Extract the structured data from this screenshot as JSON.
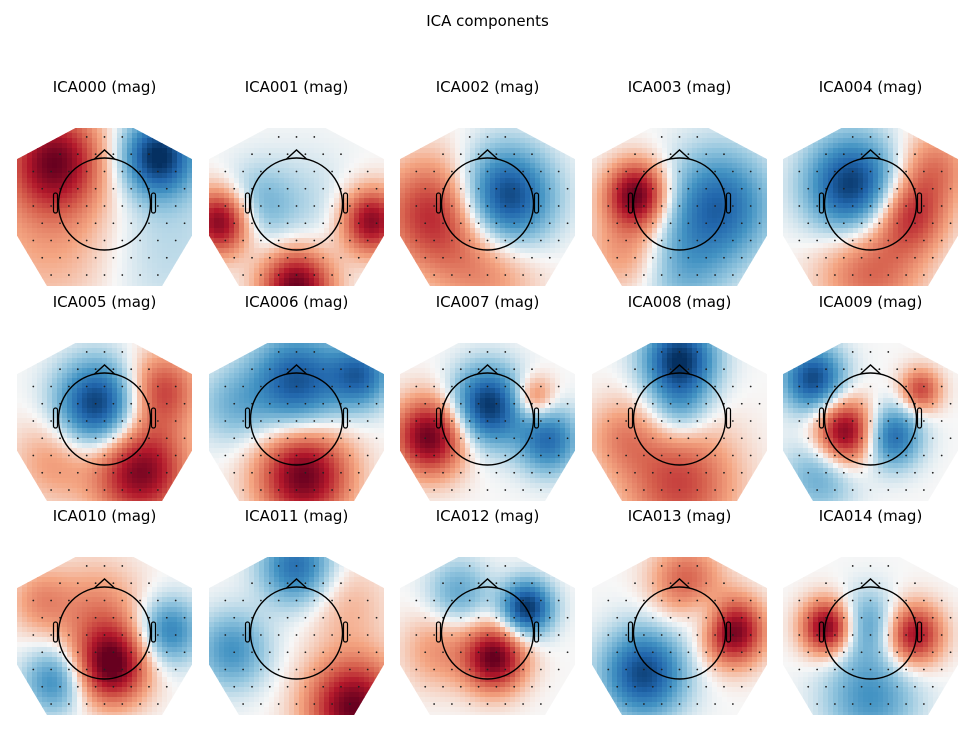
{
  "figure": {
    "title": "ICA components"
  },
  "chart_data": {
    "type": "heatmap",
    "title": "ICA components",
    "subtype": "topomap-grid",
    "colormap": {
      "name": "RdBu_r",
      "negative": "#053061",
      "zero": "#f7f7f7",
      "positive": "#67001f"
    },
    "panels": [
      {
        "label": "ICA000 (mag)",
        "blobs": [
          {
            "x": -0.7,
            "y": 0.6,
            "amp": 0.85,
            "s": 0.45
          },
          {
            "x": 0.75,
            "y": 0.65,
            "amp": -1.0,
            "s": 0.35
          },
          {
            "x": -0.5,
            "y": -0.3,
            "amp": 0.35,
            "s": 0.8
          },
          {
            "x": 0.5,
            "y": -0.4,
            "amp": -0.25,
            "s": 0.8
          }
        ]
      },
      {
        "label": "ICA001 (mag)",
        "blobs": [
          {
            "x": 0.0,
            "y": -1.05,
            "amp": 1.0,
            "s": 0.35
          },
          {
            "x": -1.05,
            "y": -0.2,
            "amp": 1.0,
            "s": 0.3
          },
          {
            "x": 1.05,
            "y": -0.2,
            "amp": 0.9,
            "s": 0.3
          },
          {
            "x": -0.6,
            "y": 0.0,
            "amp": -0.35,
            "s": 0.35
          },
          {
            "x": 0.1,
            "y": 0.0,
            "amp": -0.15,
            "s": 0.5
          }
        ]
      },
      {
        "label": "ICA002 (mag)",
        "blobs": [
          {
            "x": 0.25,
            "y": 0.1,
            "amp": -1.0,
            "s": 0.45
          },
          {
            "x": -0.75,
            "y": -0.1,
            "amp": 0.7,
            "s": 0.5
          },
          {
            "x": 0.0,
            "y": -0.8,
            "amp": 0.35,
            "s": 0.5
          }
        ]
      },
      {
        "label": "ICA003 (mag)",
        "blobs": [
          {
            "x": -0.6,
            "y": 0.15,
            "amp": 1.0,
            "s": 0.3
          },
          {
            "x": 0.55,
            "y": 0.0,
            "amp": -0.75,
            "s": 0.5
          },
          {
            "x": 0.0,
            "y": -0.8,
            "amp": -0.35,
            "s": 0.45
          },
          {
            "x": -0.7,
            "y": -0.6,
            "amp": 0.35,
            "s": 0.4
          }
        ]
      },
      {
        "label": "ICA004 (mag)",
        "blobs": [
          {
            "x": -0.25,
            "y": 0.25,
            "amp": -1.0,
            "s": 0.45
          },
          {
            "x": 0.55,
            "y": -0.1,
            "amp": 0.65,
            "s": 0.35
          },
          {
            "x": 0.0,
            "y": -0.8,
            "amp": 0.5,
            "s": 0.5
          },
          {
            "x": 0.9,
            "y": 0.5,
            "amp": 0.4,
            "s": 0.35
          }
        ]
      },
      {
        "label": "ICA005 (mag)",
        "blobs": [
          {
            "x": -0.1,
            "y": 0.2,
            "amp": -1.0,
            "s": 0.4
          },
          {
            "x": 0.5,
            "y": -0.65,
            "amp": 0.95,
            "s": 0.45
          },
          {
            "x": 0.8,
            "y": 0.4,
            "amp": 0.6,
            "s": 0.35
          },
          {
            "x": -0.7,
            "y": -0.5,
            "amp": 0.3,
            "s": 0.4
          }
        ]
      },
      {
        "label": "ICA006 (mag)",
        "blobs": [
          {
            "x": 0.0,
            "y": 0.5,
            "amp": -0.85,
            "s": 0.45
          },
          {
            "x": 0.9,
            "y": 0.6,
            "amp": -0.7,
            "s": 0.3
          },
          {
            "x": 0.1,
            "y": -0.7,
            "amp": 1.0,
            "s": 0.45
          },
          {
            "x": -0.9,
            "y": 0.2,
            "amp": -0.3,
            "s": 0.35
          }
        ]
      },
      {
        "label": "ICA007 (mag)",
        "blobs": [
          {
            "x": 0.0,
            "y": 0.2,
            "amp": -1.0,
            "s": 0.35
          },
          {
            "x": -0.8,
            "y": -0.2,
            "amp": 1.0,
            "s": 0.35
          },
          {
            "x": 0.65,
            "y": 0.3,
            "amp": 0.5,
            "s": 0.2
          },
          {
            "x": 0.85,
            "y": -0.25,
            "amp": -0.7,
            "s": 0.3
          }
        ]
      },
      {
        "label": "ICA008 (mag)",
        "blobs": [
          {
            "x": 0.0,
            "y": 0.8,
            "amp": -1.0,
            "s": 0.35
          },
          {
            "x": 0.0,
            "y": 0.15,
            "amp": -0.35,
            "s": 0.3
          },
          {
            "x": 0.0,
            "y": -0.8,
            "amp": 0.6,
            "s": 0.55
          },
          {
            "x": -0.8,
            "y": -0.2,
            "amp": 0.3,
            "s": 0.35
          }
        ]
      },
      {
        "label": "ICA009 (mag)",
        "blobs": [
          {
            "x": -0.35,
            "y": -0.15,
            "amp": 1.0,
            "s": 0.3
          },
          {
            "x": 0.3,
            "y": -0.2,
            "amp": -0.75,
            "s": 0.28
          },
          {
            "x": -0.8,
            "y": 0.55,
            "amp": -0.9,
            "s": 0.3
          },
          {
            "x": 0.7,
            "y": 0.4,
            "amp": 0.6,
            "s": 0.2
          },
          {
            "x": -0.7,
            "y": -0.7,
            "amp": -0.4,
            "s": 0.35
          }
        ]
      },
      {
        "label": "ICA010 (mag)",
        "blobs": [
          {
            "x": 0.1,
            "y": -0.4,
            "amp": 1.0,
            "s": 0.35
          },
          {
            "x": -0.1,
            "y": 0.3,
            "amp": 0.35,
            "s": 0.45
          },
          {
            "x": 0.9,
            "y": 0.05,
            "amp": -0.6,
            "s": 0.3
          },
          {
            "x": -0.7,
            "y": -0.6,
            "amp": -0.55,
            "s": 0.3
          },
          {
            "x": -0.9,
            "y": 0.45,
            "amp": 0.3,
            "s": 0.3
          }
        ]
      },
      {
        "label": "ICA011 (mag)",
        "blobs": [
          {
            "x": 0.8,
            "y": -0.95,
            "amp": 1.0,
            "s": 0.45
          },
          {
            "x": 0.0,
            "y": 0.9,
            "amp": -0.7,
            "s": 0.35
          },
          {
            "x": -0.9,
            "y": -0.2,
            "amp": -0.5,
            "s": 0.35
          },
          {
            "x": 0.7,
            "y": 0.4,
            "amp": 0.2,
            "s": 0.4
          }
        ]
      },
      {
        "label": "ICA012 (mag)",
        "blobs": [
          {
            "x": 0.1,
            "y": -0.3,
            "amp": 1.0,
            "s": 0.3
          },
          {
            "x": 0.55,
            "y": 0.35,
            "amp": -1.0,
            "s": 0.25
          },
          {
            "x": -0.4,
            "y": 0.55,
            "amp": -0.4,
            "s": 0.3
          },
          {
            "x": -0.7,
            "y": -0.2,
            "amp": 0.3,
            "s": 0.35
          }
        ]
      },
      {
        "label": "ICA013 (mag)",
        "blobs": [
          {
            "x": 0.75,
            "y": 0.05,
            "amp": 1.0,
            "s": 0.3
          },
          {
            "x": -0.5,
            "y": -0.5,
            "amp": -0.9,
            "s": 0.4
          },
          {
            "x": 0.1,
            "y": 0.7,
            "amp": 0.5,
            "s": 0.35
          },
          {
            "x": 0.4,
            "y": 0.25,
            "amp": -0.3,
            "s": 0.25
          }
        ]
      },
      {
        "label": "ICA014 (mag)",
        "blobs": [
          {
            "x": -0.6,
            "y": 0.1,
            "amp": 1.0,
            "s": 0.25
          },
          {
            "x": 0.6,
            "y": 0.0,
            "amp": 0.85,
            "s": 0.28
          },
          {
            "x": -0.05,
            "y": 0.15,
            "amp": -0.45,
            "s": 0.3
          },
          {
            "x": 0.0,
            "y": -0.8,
            "amp": -0.5,
            "s": 0.45
          }
        ]
      }
    ]
  }
}
